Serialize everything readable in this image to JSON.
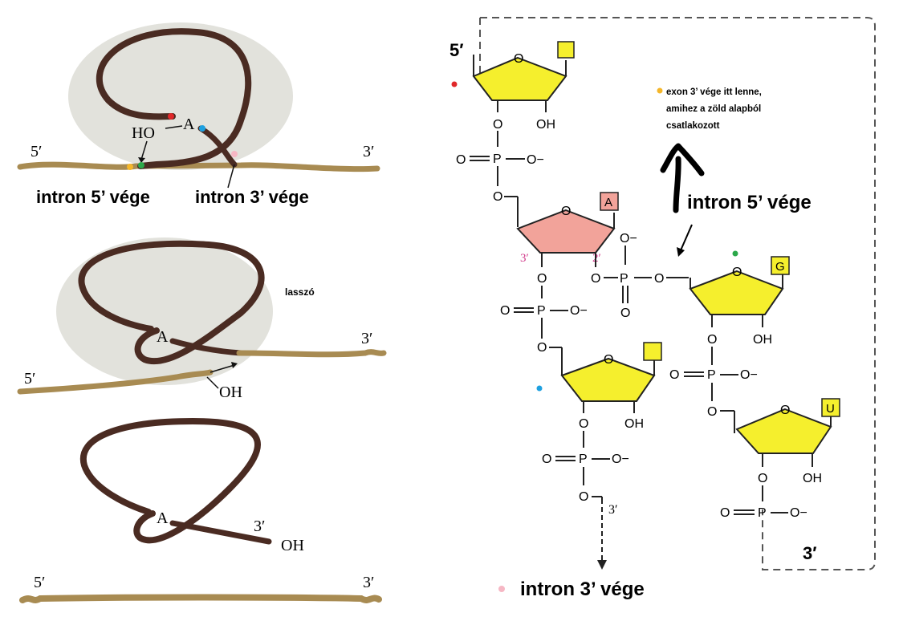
{
  "colors": {
    "intron": "#4a2b22",
    "exon": "#a88b52",
    "spliceosome": "#e2e2dc",
    "sugar": "#f5ef2d",
    "sugar_A": "#f2a39a",
    "base_box": "#f5ef2d",
    "base_box_A": "#f2a39a",
    "dot_red": "#e0282a",
    "dot_blue": "#1ea0e0",
    "dot_green": "#2ba84a",
    "dot_yellow": "#f4b62a",
    "dot_pink": "#f6b7c4"
  },
  "left": {
    "panel1": {
      "five_prime": "5′",
      "three_prime": "3′",
      "A": "A",
      "HO": "HO",
      "intron5": "intron 5’ vége",
      "intron3": "intron 3’ vége"
    },
    "panel2": {
      "lasso": "lasszó",
      "A": "A",
      "three_prime": "3′",
      "five_prime": "5′",
      "OH": "OH"
    },
    "panel3": {
      "A": "A",
      "three_prime": "3′",
      "OH": "OH"
    },
    "panel4": {
      "five_prime": "5′",
      "three_prime": "3′"
    }
  },
  "right": {
    "five_prime": "5′",
    "three_prime": "3′",
    "three_prime_box": "3′",
    "O": "O",
    "OH": "OH",
    "P": "P",
    "O_minus": "O−",
    "prime3": "3′",
    "prime2": "2′",
    "base_A": "A",
    "base_G": "G",
    "base_U": "U",
    "note_line1": "exon 3’ vége itt lenne,",
    "note_line2": "amihez a zöld alapból",
    "note_line3": "csatlakozott",
    "intron5": "intron 5’ vége",
    "intron3": "intron 3’ vége"
  }
}
